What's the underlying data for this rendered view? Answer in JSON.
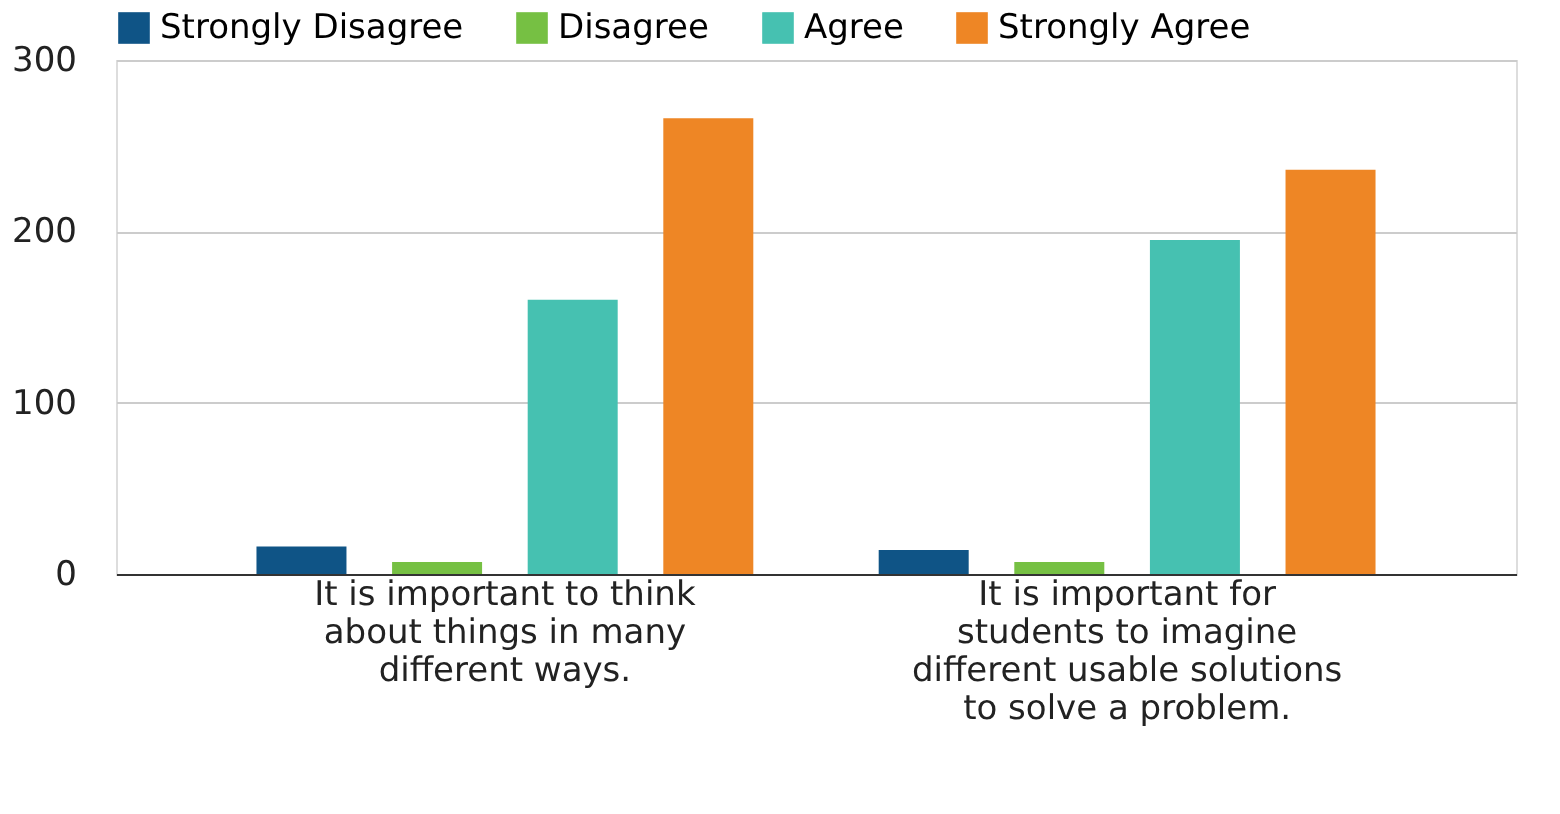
{
  "chart_data": {
    "type": "bar",
    "categories": [
      "It is important to think about things in many different ways.",
      "It is important for students to imagine different usable solutions to solve a problem."
    ],
    "series": [
      {
        "name": "Strongly Disagree",
        "color": "#0f5486",
        "values": [
          16,
          14
        ]
      },
      {
        "name": "Disagree",
        "color": "#76c043",
        "values": [
          7,
          7
        ]
      },
      {
        "name": "Agree",
        "color": "#46c1b1",
        "values": [
          160,
          195
        ]
      },
      {
        "name": "Strongly Agree",
        "color": "#ee8625",
        "values": [
          266,
          236
        ]
      }
    ],
    "ylim": [
      0,
      300
    ],
    "yticks": [
      0,
      100,
      200,
      300
    ],
    "grid": "y",
    "legend": "top left"
  }
}
